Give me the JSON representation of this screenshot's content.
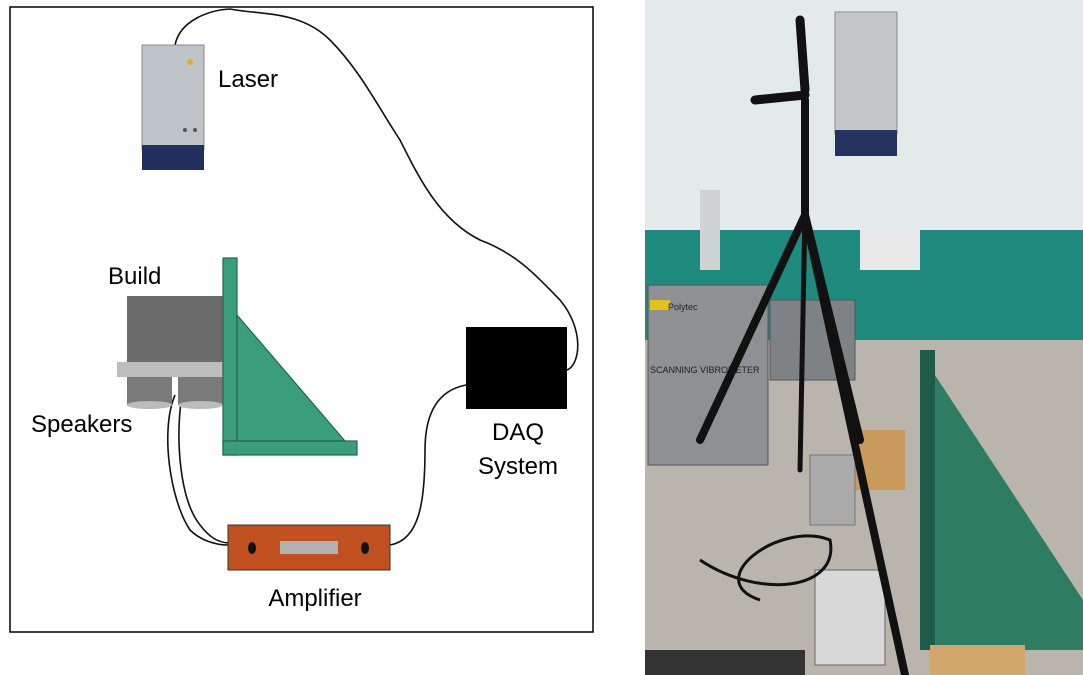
{
  "diagram": {
    "laser": "Laser",
    "build": "Build",
    "speakers": "Speakers",
    "daq": [
      "DAQ",
      "System"
    ],
    "amplifier": "Amplifier"
  },
  "photo": {
    "case_brand": "Polytec",
    "case_text": "SCANNING VIBROMETER"
  }
}
